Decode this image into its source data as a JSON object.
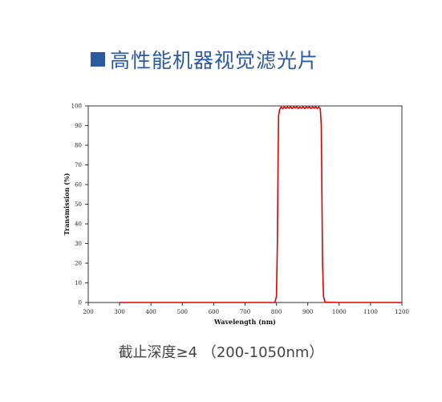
{
  "heading": {
    "text": "高性能机器视觉滤光片"
  },
  "caption": {
    "text": "截止深度≥4 （200-1050nm）"
  },
  "colors": {
    "accent": "#2c5aa0",
    "series": "#e00000",
    "frame": "#333333"
  },
  "chart_data": {
    "type": "line",
    "xlabel": "Wavelength (nm)",
    "ylabel": "Transmission (%)",
    "xlim": [
      200,
      1200
    ],
    "ylim": [
      0,
      100
    ],
    "xticks": [
      200,
      300,
      400,
      500,
      600,
      700,
      800,
      900,
      1000,
      1100,
      1200
    ],
    "yticks": [
      0,
      10,
      20,
      30,
      40,
      50,
      60,
      70,
      80,
      90,
      100
    ],
    "grid": false,
    "series": [
      {
        "x": [
          300,
          700,
          795,
          800,
          803,
          805,
          807,
          810,
          815,
          820,
          825,
          830,
          835,
          840,
          845,
          850,
          855,
          860,
          865,
          870,
          875,
          880,
          885,
          890,
          895,
          900,
          905,
          910,
          915,
          920,
          925,
          930,
          935,
          940,
          943,
          945,
          947,
          950,
          955,
          1000,
          1200
        ],
        "y": [
          0,
          0,
          0,
          3,
          30,
          70,
          95,
          98,
          99.5,
          98.5,
          99.6,
          98.7,
          99.5,
          98.8,
          99.6,
          98.6,
          99.5,
          98.9,
          99.6,
          98.7,
          99.4,
          98.8,
          99.6,
          98.6,
          99.5,
          98.9,
          99.6,
          98.7,
          99.5,
          98.8,
          99.6,
          98.7,
          99.5,
          98.5,
          90,
          55,
          20,
          3,
          0.2,
          0,
          0
        ]
      }
    ]
  }
}
